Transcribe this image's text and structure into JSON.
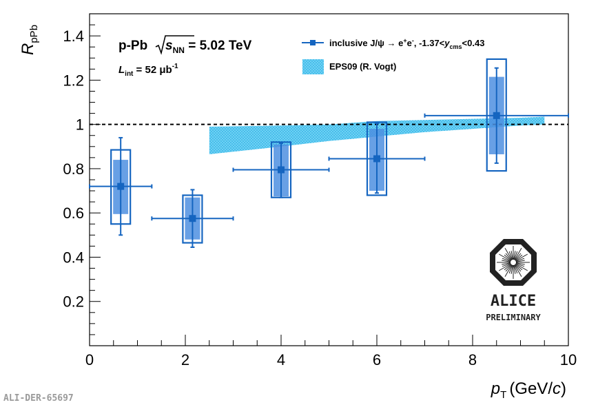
{
  "chart_data": {
    "type": "scatter",
    "title": "",
    "xlabel": "p_T (GeV/c)",
    "xlabel_parts": {
      "symbol": "p",
      "sub": "T",
      "unit": "(GeV/",
      "unit_italic": "c",
      "unit_close": ")"
    },
    "ylabel": "R_pPb",
    "ylabel_parts": {
      "symbol": "R",
      "sub": "pPb"
    },
    "xlim": [
      0,
      10
    ],
    "ylim": [
      0,
      1.5
    ],
    "xticks": [
      "0",
      "2",
      "4",
      "6",
      "8",
      "10"
    ],
    "yticks": [
      "0.2",
      "0.4",
      "0.6",
      "0.8",
      "1",
      "1.2",
      "1.4"
    ],
    "reference_line": 1,
    "series": [
      {
        "name": "inclusive J/ψ → e+e-, -1.37<y_cms<0.43",
        "color": "#1565c0",
        "points": [
          {
            "x": 0.65,
            "y": 0.72,
            "xlo": 0.0,
            "xhi": 1.3,
            "stat_lo": 0.5,
            "stat_hi": 0.94,
            "sys_lo": 0.55,
            "sys_hi": 0.885,
            "corr_lo": 0.595,
            "corr_hi": 0.84
          },
          {
            "x": 2.15,
            "y": 0.575,
            "xlo": 1.3,
            "xhi": 3.0,
            "stat_lo": 0.445,
            "stat_hi": 0.705,
            "sys_lo": 0.465,
            "sys_hi": 0.68,
            "corr_lo": 0.48,
            "corr_hi": 0.67
          },
          {
            "x": 4.0,
            "y": 0.795,
            "xlo": 3.0,
            "xhi": 5.0,
            "stat_lo": 0.67,
            "stat_hi": 0.915,
            "sys_lo": 0.67,
            "sys_hi": 0.92,
            "corr_lo": 0.675,
            "corr_hi": 0.91
          },
          {
            "x": 6.0,
            "y": 0.845,
            "xlo": 5.0,
            "xhi": 7.0,
            "stat_lo": 0.69,
            "stat_hi": 1.005,
            "sys_lo": 0.68,
            "sys_hi": 1.01,
            "corr_lo": 0.7,
            "corr_hi": 0.98
          },
          {
            "x": 8.5,
            "y": 1.04,
            "xlo": 7.0,
            "xhi": 10.0,
            "stat_lo": 0.825,
            "stat_hi": 1.255,
            "sys_lo": 0.79,
            "sys_hi": 1.295,
            "corr_lo": 0.865,
            "corr_hi": 1.215
          }
        ]
      },
      {
        "name": "EPS09 (R. Vogt)",
        "color": "#29b6f6",
        "type": "band",
        "x": [
          2.5,
          4,
          5,
          6,
          7,
          8,
          9,
          9.5
        ],
        "lower": [
          0.865,
          0.9,
          0.925,
          0.945,
          0.965,
          0.98,
          0.995,
          1.0
        ],
        "upper": [
          0.99,
          0.995,
          1.0,
          1.015,
          1.02,
          1.025,
          1.03,
          1.035
        ]
      }
    ],
    "legend": {
      "placement": "top-right"
    },
    "annotations": {
      "system_prefix": "p-Pb",
      "energy_symbol": "s",
      "energy_sub": "NN",
      "energy_value": " = 5.02 TeV",
      "lumi_symbol": "L",
      "lumi_sub": "int",
      "lumi_value": " = 52 μb",
      "lumi_sup": "-1"
    },
    "legend_items": [
      {
        "text_main": "inclusive J/ψ → e",
        "sup1": "+",
        "mid": "e",
        "sup2": "-",
        "tail": ", -1.37<",
        "y_sym": "y",
        "y_sub": "cms",
        "end": "<0.43"
      },
      {
        "text_main": "EPS09 (R. Vogt)"
      }
    ]
  },
  "logo": {
    "name": "ALICE",
    "tag": "PRELIMINARY"
  },
  "figure_id": "ALI-DER-65697"
}
